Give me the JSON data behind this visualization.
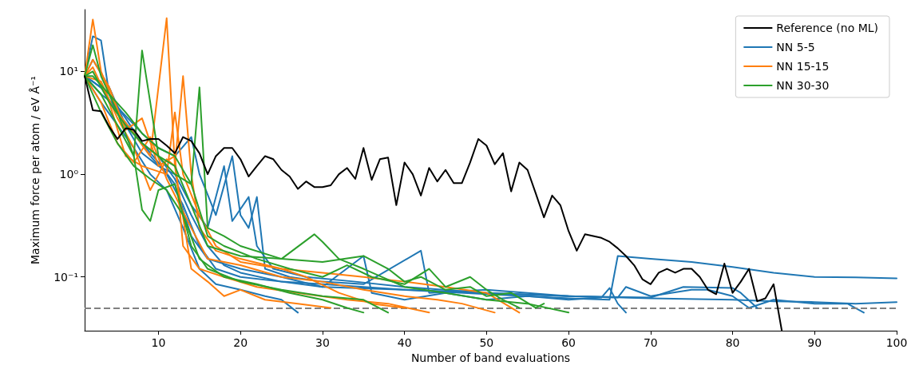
{
  "chart_data": {
    "type": "line",
    "xlabel": "Number of band evaluations",
    "ylabel": "Maximum force per atom / eV Å⁻¹",
    "log": "y",
    "grid": false,
    "legend": "top right",
    "marker": "none",
    "line_style": "solid",
    "xlim": [
      1,
      100
    ],
    "xticks": [
      10,
      20,
      30,
      40,
      50,
      60,
      70,
      80,
      90,
      100
    ],
    "ylim": [
      0.03,
      40
    ],
    "yticks": [
      {
        "value": 0.1,
        "label": "10⁻¹"
      },
      {
        "value": 1,
        "label": "10⁰"
      },
      {
        "value": 10,
        "label": "10¹"
      }
    ],
    "ref_lines": [
      {
        "axis": "y",
        "value": 0.05,
        "label": null,
        "color": "#808080",
        "line_style": "dashed"
      }
    ],
    "series": [
      {
        "name": "NN 5-5",
        "color": "#1f77b4",
        "x": [
          1,
          2,
          3,
          4,
          5,
          6,
          8,
          10,
          12,
          14,
          16,
          18,
          20,
          25,
          30,
          40,
          50,
          60,
          65,
          66,
          68,
          70,
          75,
          80,
          85,
          90,
          95,
          100
        ],
        "values": [
          9,
          22,
          20,
          6,
          4,
          3,
          2,
          1.5,
          0.9,
          0.4,
          0.2,
          0.13,
          0.11,
          0.09,
          0.085,
          0.075,
          0.068,
          0.062,
          0.06,
          0.16,
          0.155,
          0.15,
          0.14,
          0.125,
          0.11,
          0.1,
          0.099,
          0.097
        ]
      },
      {
        "color": "#1f77b4",
        "x": [
          1,
          3,
          5,
          7,
          9,
          11,
          13,
          15,
          17,
          20,
          25,
          30,
          40,
          50,
          60,
          70,
          80,
          85,
          90,
          95,
          100
        ],
        "values": [
          9,
          7,
          4,
          2.5,
          1.5,
          1.0,
          0.5,
          0.2,
          0.12,
          0.1,
          0.09,
          0.08,
          0.075,
          0.07,
          0.065,
          0.062,
          0.06,
          0.058,
          0.057,
          0.055,
          0.057
        ]
      },
      {
        "color": "#1f77b4",
        "x": [
          1,
          2,
          4,
          6,
          8,
          10,
          12,
          14,
          16,
          18,
          19,
          21,
          22,
          24,
          28,
          34,
          40,
          50,
          60,
          66,
          67,
          70,
          75,
          77,
          80,
          82,
          85,
          90,
          94,
          96
        ],
        "values": [
          9,
          13,
          7,
          3,
          1.6,
          1.2,
          1.0,
          0.5,
          0.3,
          1.2,
          0.35,
          0.6,
          0.2,
          0.12,
          0.1,
          0.09,
          0.08,
          0.07,
          0.065,
          0.063,
          0.08,
          0.065,
          0.075,
          0.075,
          0.065,
          0.05,
          0.06,
          0.055,
          0.055,
          0.045
        ]
      },
      {
        "color": "#1f77b4",
        "x": [
          1,
          3,
          5,
          8,
          10,
          12,
          14,
          15,
          17,
          19,
          20,
          21,
          22,
          23,
          26,
          30,
          35,
          42,
          43,
          50,
          60,
          70,
          74,
          80,
          81,
          83
        ],
        "values": [
          9,
          6,
          4.5,
          2.5,
          1.8,
          1.5,
          2.3,
          1.0,
          0.4,
          1.5,
          0.4,
          0.3,
          0.6,
          0.12,
          0.1,
          0.09,
          0.085,
          0.18,
          0.07,
          0.075,
          0.065,
          0.063,
          0.08,
          0.078,
          0.07,
          0.05
        ]
      },
      {
        "color": "#1f77b4",
        "x": [
          1,
          2,
          4,
          6,
          8,
          10,
          12,
          14,
          16,
          20,
          25,
          30,
          35,
          36,
          40,
          45,
          50,
          55,
          60,
          64,
          65,
          66,
          67
        ],
        "values": [
          9,
          8,
          6,
          3.5,
          2,
          1.3,
          0.8,
          0.25,
          0.15,
          0.12,
          0.1,
          0.08,
          0.16,
          0.07,
          0.06,
          0.07,
          0.06,
          0.065,
          0.06,
          0.063,
          0.078,
          0.055,
          0.045
        ]
      },
      {
        "color": "#1f77b4",
        "x": [
          1,
          3,
          5,
          7,
          9,
          11,
          13,
          15,
          17,
          20,
          23,
          25,
          27
        ],
        "values": [
          9,
          5,
          3,
          1.8,
          1.0,
          0.7,
          0.3,
          0.12,
          0.085,
          0.075,
          0.065,
          0.06,
          0.045
        ]
      },
      {
        "name": "NN 15-15",
        "color": "#ff7f0e",
        "x": [
          1,
          2,
          3,
          5,
          7,
          9,
          11,
          12,
          13,
          14,
          15,
          17,
          20,
          25,
          30,
          35,
          40,
          45,
          50,
          54
        ],
        "values": [
          9,
          32,
          10,
          4,
          2.5,
          1.5,
          33,
          1.2,
          9,
          1.0,
          0.3,
          0.18,
          0.15,
          0.12,
          0.11,
          0.1,
          0.09,
          0.08,
          0.07,
          0.045
        ]
      },
      {
        "color": "#ff7f0e",
        "x": [
          1,
          3,
          5,
          7,
          9,
          11,
          12,
          14,
          16,
          18,
          20,
          23,
          27,
          31
        ],
        "values": [
          9,
          8,
          3.5,
          1.8,
          0.7,
          1.4,
          1.2,
          0.12,
          0.09,
          0.065,
          0.075,
          0.06,
          0.055,
          0.05
        ]
      },
      {
        "color": "#ff7f0e",
        "x": [
          1,
          2,
          4,
          6,
          8,
          10,
          12,
          13,
          15,
          18,
          22,
          27,
          33,
          38,
          43
        ],
        "values": [
          9,
          13,
          7,
          2.7,
          3.5,
          1.2,
          1.5,
          0.2,
          0.12,
          0.1,
          0.08,
          0.07,
          0.06,
          0.055,
          0.045
        ]
      },
      {
        "color": "#ff7f0e",
        "x": [
          1,
          3,
          5,
          7,
          9,
          11,
          14,
          16,
          20,
          25,
          30,
          35,
          40,
          44,
          47,
          51
        ],
        "values": [
          9,
          5,
          2,
          1.3,
          2.3,
          0.9,
          0.3,
          0.15,
          0.13,
          0.1,
          0.09,
          0.075,
          0.065,
          0.06,
          0.055,
          0.045
        ]
      },
      {
        "color": "#ff7f0e",
        "x": [
          1,
          2,
          4,
          6,
          8,
          11,
          12,
          13,
          15,
          17,
          20,
          25,
          28,
          32,
          36,
          40
        ],
        "values": [
          9,
          11,
          5,
          1.5,
          1.2,
          1.0,
          4,
          1.0,
          0.4,
          0.2,
          0.14,
          0.12,
          0.1,
          0.07,
          0.055,
          0.05
        ]
      },
      {
        "name": "NN 30-30",
        "color": "#2ca02c",
        "x": [
          1,
          2,
          3,
          5,
          7,
          8,
          9,
          10,
          12,
          14,
          15,
          16,
          18,
          20,
          25,
          29,
          30,
          32,
          35,
          40,
          45,
          50,
          55,
          60
        ],
        "values": [
          9,
          18,
          9,
          4,
          1.5,
          16,
          5,
          1.5,
          1.0,
          0.8,
          7,
          0.3,
          0.25,
          0.2,
          0.15,
          0.26,
          0.22,
          0.15,
          0.12,
          0.08,
          0.07,
          0.06,
          0.055,
          0.045
        ]
      },
      {
        "color": "#2ca02c",
        "x": [
          1,
          3,
          5,
          7,
          8,
          9,
          10,
          12,
          14,
          16,
          20,
          25,
          30,
          35,
          38
        ],
        "values": [
          9,
          6,
          3,
          1.5,
          0.45,
          0.35,
          0.7,
          0.8,
          0.2,
          0.12,
          0.09,
          0.075,
          0.065,
          0.06,
          0.045
        ]
      },
      {
        "color": "#2ca02c",
        "x": [
          1,
          2,
          4,
          6,
          8,
          10,
          12,
          14,
          16,
          20,
          25,
          30,
          35,
          38,
          40,
          42,
          45,
          48,
          50,
          53,
          56,
          57
        ],
        "values": [
          9,
          10,
          5,
          3,
          2,
          1.5,
          1.2,
          0.5,
          0.2,
          0.16,
          0.15,
          0.14,
          0.16,
          0.12,
          0.09,
          0.1,
          0.075,
          0.08,
          0.065,
          0.07,
          0.05,
          0.055
        ]
      },
      {
        "color": "#2ca02c",
        "x": [
          1,
          3,
          5,
          7,
          9,
          11,
          13,
          15,
          18,
          22,
          26,
          30,
          33,
          35
        ],
        "values": [
          9,
          4,
          2,
          1.2,
          0.9,
          0.7,
          0.4,
          0.15,
          0.1,
          0.085,
          0.07,
          0.06,
          0.05,
          0.045
        ]
      },
      {
        "color": "#2ca02c",
        "x": [
          1,
          2,
          4,
          6,
          8,
          10,
          12,
          14,
          16,
          18,
          22,
          26,
          30,
          33,
          36,
          40,
          43,
          45,
          48,
          50,
          52,
          54
        ],
        "values": [
          9,
          9,
          6,
          4,
          2.5,
          1.8,
          1.5,
          0.8,
          0.25,
          0.2,
          0.15,
          0.12,
          0.1,
          0.13,
          0.1,
          0.085,
          0.12,
          0.08,
          0.1,
          0.075,
          0.06,
          0.05
        ]
      },
      {
        "name": "Reference (no ML)",
        "color": "#000000",
        "x": [
          1,
          2,
          3,
          4,
          5,
          6,
          7,
          8,
          9,
          10,
          11,
          12,
          13,
          14,
          15,
          16,
          17,
          18,
          19,
          20,
          21,
          22,
          23,
          24,
          25,
          26,
          27,
          28,
          29,
          30,
          31,
          32,
          33,
          34,
          35,
          36,
          37,
          38,
          39,
          40,
          41,
          42,
          43,
          44,
          45,
          46,
          47,
          48,
          49,
          50,
          51,
          52,
          53,
          54,
          55,
          56,
          57,
          58,
          59,
          60,
          61,
          62,
          63,
          64,
          65,
          66,
          67,
          68,
          69,
          70,
          71,
          72,
          73,
          74,
          75,
          76,
          77,
          78,
          79,
          80,
          81,
          82,
          83,
          84,
          85,
          86
        ],
        "values": [
          9,
          4.2,
          4.1,
          2.9,
          2.2,
          2.8,
          2.7,
          2.1,
          2.2,
          2.2,
          1.9,
          1.6,
          2.3,
          2.1,
          1.6,
          1.0,
          1.5,
          1.8,
          1.8,
          1.4,
          0.95,
          1.2,
          1.5,
          1.4,
          1.1,
          0.95,
          0.72,
          0.85,
          0.75,
          0.75,
          0.78,
          1.0,
          1.15,
          0.9,
          1.8,
          0.88,
          1.4,
          1.45,
          0.5,
          1.3,
          1.0,
          0.62,
          1.15,
          0.85,
          1.1,
          0.82,
          0.82,
          1.3,
          2.2,
          1.9,
          1.25,
          1.6,
          0.68,
          1.3,
          1.1,
          0.65,
          0.38,
          0.62,
          0.5,
          0.28,
          0.18,
          0.26,
          0.25,
          0.24,
          0.22,
          0.19,
          0.16,
          0.13,
          0.095,
          0.085,
          0.11,
          0.12,
          0.11,
          0.12,
          0.12,
          0.1,
          0.075,
          0.068,
          0.135,
          0.07,
          0.09,
          0.12,
          0.058,
          0.062,
          0.085,
          0.03
        ]
      }
    ]
  }
}
